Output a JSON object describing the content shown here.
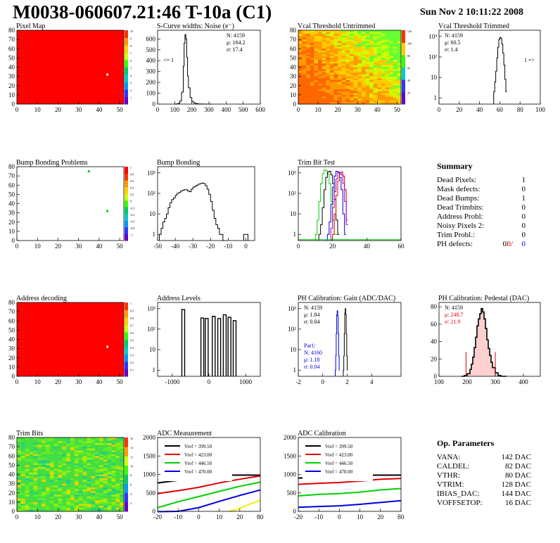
{
  "header": {
    "title": "M0038-060607.21:46 T-10a (C1)",
    "date": "Sun Nov  2 10:11:22 2008"
  },
  "colors": {
    "map_red": "#ff0000",
    "hist": "#000000",
    "red": "#e00000",
    "blue": "#0000e0",
    "green": "#00d000",
    "yellow": "#f0f000"
  },
  "chart_data": [
    {
      "id": "pixel-map",
      "type": "heatmap",
      "title": "Pixel Map",
      "xlim": [
        0,
        52
      ],
      "ylim": [
        0,
        80
      ],
      "xticks": [
        "0",
        "10",
        "20",
        "30",
        "40",
        "50"
      ],
      "yticks": [
        "0",
        "10",
        "20",
        "30",
        "40",
        "50",
        "60",
        "70",
        "80"
      ],
      "zscale": [
        "1",
        "2",
        "3",
        "4",
        "5",
        "6",
        "7",
        "8",
        "9",
        "10"
      ],
      "fill": "uniform",
      "dead_pixels": [
        [
          44,
          32
        ]
      ]
    },
    {
      "id": "scurve",
      "type": "line",
      "title": "S-Curve widths: Noise (e⁻)",
      "xlim": [
        0,
        600
      ],
      "ylim": [
        0,
        680
      ],
      "xticks": [
        "0",
        "100",
        "200",
        "300",
        "400",
        "500",
        "600"
      ],
      "yticks": [
        "0",
        "100",
        "200",
        "300",
        "400",
        "500",
        "600"
      ],
      "stats": [
        "N: 4159",
        "μ: 164.2",
        "σ: 17.4"
      ],
      "underflow_label": "<= 1",
      "x": [
        100,
        110,
        120,
        130,
        140,
        150,
        155,
        160,
        165,
        170,
        175,
        180,
        190,
        200,
        210,
        220,
        230,
        240,
        250,
        260,
        280,
        300
      ],
      "values": [
        0,
        2,
        8,
        30,
        110,
        350,
        560,
        640,
        600,
        430,
        260,
        150,
        60,
        25,
        12,
        6,
        3,
        2,
        1,
        1,
        0,
        0
      ]
    },
    {
      "id": "vcal-untrimmed",
      "type": "heatmap",
      "title": "Vcal Threshold Untrimmed",
      "xlim": [
        0,
        52
      ],
      "ylim": [
        0,
        80
      ],
      "xticks": [
        "0",
        "10",
        "20",
        "30",
        "40",
        "50"
      ],
      "yticks": [
        "0",
        "10",
        "20",
        "30",
        "40",
        "50",
        "60",
        "70",
        "80"
      ],
      "zscale": [
        "20",
        "40",
        "60",
        "80",
        "100",
        "120"
      ],
      "fill": "gradient-orange-green"
    },
    {
      "id": "vcal-trimmed",
      "type": "line",
      "title": "Vcal Threshold Trimmed",
      "log_y": true,
      "xlim": [
        0,
        100
      ],
      "ylim": [
        0.5,
        2000
      ],
      "xticks": [
        "0",
        "20",
        "40",
        "60",
        "80",
        "100"
      ],
      "yticks": [
        "1",
        "10",
        "10²",
        "10³"
      ],
      "stats": [
        "N: 4159",
        "μ: 60.5",
        "σ:  1.4"
      ],
      "overflow_label": "1 =>",
      "x": [
        54,
        55,
        56,
        57,
        58,
        59,
        60,
        61,
        62,
        63,
        64,
        65,
        66
      ],
      "values": [
        2,
        6,
        20,
        90,
        300,
        700,
        900,
        800,
        420,
        150,
        40,
        8,
        2
      ]
    },
    {
      "id": "bump-problems",
      "type": "heatmap",
      "title": "Bump Bonding Problems",
      "xlim": [
        0,
        52
      ],
      "ylim": [
        0,
        80
      ],
      "xticks": [
        "0",
        "10",
        "20",
        "30",
        "40",
        "50"
      ],
      "yticks": [
        "0",
        "10",
        "20",
        "30",
        "40",
        "50",
        "60",
        "70",
        "80"
      ],
      "zscale": [
        "-1",
        "-0.8",
        "-0.6",
        "-0.4",
        "-0.2",
        "0",
        "0.2",
        "0.4",
        "0.6",
        "0.8",
        "1"
      ],
      "fill": "white",
      "dead_pixels": [
        [
          35,
          75
        ],
        [
          44,
          32
        ]
      ]
    },
    {
      "id": "bump-bonding",
      "type": "line",
      "title": "Bump Bonding",
      "log_y": true,
      "xlim": [
        -50,
        5
      ],
      "ylim": [
        0.5,
        2000
      ],
      "xticks": [
        "-50",
        "-40",
        "-30",
        "-20",
        "-10",
        "0"
      ],
      "yticks": [
        "1",
        "10",
        "10²",
        "10³"
      ],
      "x": [
        -49,
        -48,
        -47,
        -46,
        -45,
        -44,
        -43,
        -42,
        -41,
        -40,
        -39,
        -38,
        -37,
        -36,
        -35,
        -34,
        -33,
        -32,
        -31,
        -30,
        -29,
        -28,
        -27,
        -26,
        -25,
        -24,
        -23,
        -22,
        -21,
        -20,
        -19,
        -18,
        -17,
        -16,
        -15,
        -14,
        -13
      ],
      "values": [
        1,
        2,
        4,
        6,
        10,
        20,
        35,
        50,
        60,
        80,
        100,
        110,
        130,
        140,
        150,
        150,
        130,
        120,
        160,
        200,
        220,
        250,
        280,
        300,
        320,
        300,
        240,
        160,
        90,
        40,
        15,
        6,
        3,
        2,
        1,
        1,
        0.5
      ],
      "extra": {
        "x": 0,
        "value": 1
      }
    },
    {
      "id": "trim-bit-test",
      "type": "line",
      "title": "Trim Bit Test",
      "log_y": true,
      "xlim": [
        0,
        60
      ],
      "ylim": [
        0.5,
        2000
      ],
      "xticks": [
        "0",
        "20",
        "40",
        "60"
      ],
      "yticks": [
        "1",
        "10",
        "10²",
        "10³"
      ],
      "series": [
        {
          "color": "#00d000",
          "x": [
            10,
            11,
            12,
            13,
            14,
            15,
            16,
            17,
            18,
            19,
            20,
            21,
            22
          ],
          "values": [
            1,
            5,
            40,
            300,
            900,
            1400,
            1300,
            900,
            300,
            40,
            5,
            1,
            1
          ]
        },
        {
          "color": "#000000",
          "x": [
            12,
            13,
            14,
            15,
            16,
            17,
            18,
            19,
            20,
            21,
            22,
            23
          ],
          "values": [
            1,
            3,
            20,
            150,
            600,
            1100,
            1200,
            800,
            300,
            50,
            5,
            1
          ]
        },
        {
          "color": "#0000e0",
          "x": [
            17,
            18,
            19,
            20,
            21,
            22,
            23,
            24,
            25,
            26,
            27
          ],
          "values": [
            1,
            4,
            30,
            200,
            700,
            1200,
            1100,
            600,
            150,
            10,
            1
          ]
        },
        {
          "color": "#e00000",
          "x": [
            20,
            21,
            22,
            23,
            24,
            25,
            26,
            27,
            28
          ],
          "values": [
            1,
            10,
            80,
            400,
            900,
            1100,
            700,
            150,
            5
          ]
        },
        {
          "color": "#a000c0",
          "x": [
            19,
            20,
            21,
            22,
            23,
            24,
            25,
            26,
            27,
            28
          ],
          "values": [
            2,
            20,
            120,
            500,
            1000,
            1100,
            800,
            300,
            40,
            3
          ]
        }
      ]
    },
    {
      "id": "address-decoding",
      "type": "heatmap",
      "title": "Address decoding",
      "xlim": [
        0,
        52
      ],
      "ylim": [
        0,
        80
      ],
      "xticks": [
        "0",
        "10",
        "20",
        "30",
        "40",
        "50"
      ],
      "yticks": [
        "0",
        "10",
        "20",
        "30",
        "40",
        "50",
        "60",
        "70",
        "80"
      ],
      "zscale": [
        "0.1",
        "0.2",
        "0.3",
        "0.4",
        "0.5",
        "0.6",
        "0.7",
        "0.8",
        "0.9",
        "1"
      ],
      "fill": "uniform",
      "dead_pixels": [
        [
          44,
          32
        ]
      ]
    },
    {
      "id": "address-levels",
      "type": "line",
      "title": "Address Levels",
      "log_y": true,
      "xlim": [
        -1400,
        1400
      ],
      "ylim": [
        0.5,
        2000
      ],
      "xticks": [
        "-1000",
        "0",
        "1000"
      ],
      "yticks": [
        "1",
        "10",
        "10²",
        "10³"
      ],
      "peaks": [
        {
          "x": -700,
          "v": 900
        },
        {
          "x": -180,
          "v": 350
        },
        {
          "x": -60,
          "v": 330
        },
        {
          "x": 130,
          "v": 420
        },
        {
          "x": 280,
          "v": 330
        },
        {
          "x": 430,
          "v": 500
        },
        {
          "x": 560,
          "v": 380
        },
        {
          "x": 700,
          "v": 260
        }
      ]
    },
    {
      "id": "ph-gain",
      "type": "line",
      "title": "PH Calibration: Gain (ADC/DAC)",
      "log_y": true,
      "xlim": [
        -2,
        6.4
      ],
      "ylim": [
        0.5,
        2000
      ],
      "xticks": [
        "-2",
        "0",
        "2",
        "4"
      ],
      "yticks": [
        "1",
        "10",
        "10²",
        "10³"
      ],
      "stats": [
        "N: 4159",
        "μ: 1.84",
        "σ: 0.04"
      ],
      "stats2": [
        "Par1:",
        "N: 4160",
        "μ: 1.18",
        "σ: 0.04"
      ],
      "series": [
        {
          "color": "#000000",
          "x": [
            1.68,
            1.72,
            1.76,
            1.8,
            1.84,
            1.88,
            1.92,
            1.96,
            2.0
          ],
          "values": [
            1,
            5,
            60,
            600,
            1000,
            500,
            60,
            5,
            1
          ]
        },
        {
          "color": "#0000e0",
          "x": [
            1.02,
            1.06,
            1.1,
            1.14,
            1.18,
            1.22,
            1.26,
            1.3,
            1.34
          ],
          "values": [
            1,
            5,
            60,
            500,
            800,
            450,
            60,
            5,
            1
          ]
        }
      ]
    },
    {
      "id": "ph-pedestal",
      "type": "line",
      "title": "PH Calibration: Pedestal (DAC)",
      "xlim": [
        100,
        460
      ],
      "ylim": [
        0,
        85
      ],
      "xticks": [
        "100",
        "200",
        "300",
        "400"
      ],
      "yticks": [
        "0",
        "20",
        "40",
        "60",
        "80"
      ],
      "stats": [
        "N: 4159",
        "μ: 248.7",
        "σ: 21.9"
      ],
      "x": [
        180,
        190,
        200,
        210,
        215,
        220,
        225,
        230,
        235,
        240,
        245,
        250,
        255,
        260,
        265,
        270,
        275,
        280,
        285,
        290,
        300,
        310,
        320,
        330
      ],
      "values": [
        0,
        1,
        3,
        8,
        14,
        22,
        33,
        45,
        58,
        66,
        72,
        78,
        74,
        66,
        55,
        42,
        32,
        24,
        16,
        10,
        4,
        1,
        0,
        0
      ],
      "markers": [
        196,
        300
      ]
    },
    {
      "id": "trim-bits",
      "type": "heatmap",
      "title": "Trim Bits",
      "xlim": [
        0,
        52
      ],
      "ylim": [
        0,
        80
      ],
      "xticks": [
        "0",
        "10",
        "20",
        "30",
        "40",
        "50"
      ],
      "yticks": [
        "0",
        "10",
        "20",
        "30",
        "40",
        "50",
        "60",
        "70",
        "80"
      ],
      "zscale": [
        "2",
        "4",
        "6",
        "8",
        "10",
        "12",
        "14",
        "16"
      ],
      "fill": "noise-green"
    },
    {
      "id": "adc-measurement",
      "type": "line",
      "title": "ADC Measurement",
      "xlim": [
        -20,
        30
      ],
      "ylim": [
        0,
        2000
      ],
      "xticks": [
        "-20",
        "-10",
        "0",
        "10",
        "20",
        "30"
      ],
      "yticks": [
        "0",
        "500",
        "1000",
        "1500",
        "2000"
      ],
      "xaxis_unit": "τ",
      "series": [
        {
          "name": "Vref = 399.50",
          "color": "#000000",
          "x": [
            -20,
            -10,
            0,
            5,
            17,
            20,
            30
          ],
          "values": [
            770,
            840,
            950,
            990,
            980,
            980,
            980
          ]
        },
        {
          "name": "Vref = 423.00",
          "color": "#e00000",
          "x": [
            -20,
            -10,
            0,
            10,
            20,
            30
          ],
          "values": [
            480,
            560,
            650,
            770,
            870,
            960
          ]
        },
        {
          "name": "Vref = 446.50",
          "color": "#00d000",
          "x": [
            -20,
            -10,
            0,
            10,
            20,
            30
          ],
          "values": [
            100,
            260,
            400,
            540,
            680,
            790
          ]
        },
        {
          "name": "Vref = 470.00",
          "color": "#0000e0",
          "x": [
            -20,
            -10,
            0,
            10,
            20,
            30
          ],
          "values": [
            -10,
            0,
            100,
            270,
            430,
            580
          ]
        },
        {
          "name": "",
          "color": "#f0f000",
          "x": [
            15,
            20,
            25,
            30
          ],
          "values": [
            0,
            80,
            200,
            300
          ]
        }
      ]
    },
    {
      "id": "adc-calibration",
      "type": "line",
      "title": "ADC Calibration",
      "xlim": [
        -20,
        30
      ],
      "ylim": [
        0,
        2000
      ],
      "xticks": [
        "-20",
        "-10",
        "0",
        "10",
        "20",
        "30"
      ],
      "yticks": [
        "0",
        "500",
        "1000",
        "1500",
        "2000"
      ],
      "xaxis_unit": "τ",
      "series": [
        {
          "name": "Vref = 399.50",
          "color": "#000000",
          "x": [
            -20,
            -10,
            0,
            5,
            17,
            20,
            30
          ],
          "values": [
            900,
            920,
            960,
            980,
            980,
            980,
            980
          ]
        },
        {
          "name": "Vref = 423.00",
          "color": "#e00000",
          "x": [
            -20,
            -10,
            0,
            10,
            20,
            30
          ],
          "values": [
            730,
            760,
            780,
            820,
            870,
            890
          ]
        },
        {
          "name": "Vref = 446.50",
          "color": "#00d000",
          "x": [
            -20,
            -10,
            0,
            10,
            20,
            30
          ],
          "values": [
            420,
            460,
            480,
            520,
            580,
            620
          ]
        },
        {
          "name": "Vref = 470.00",
          "color": "#0000e0",
          "x": [
            -20,
            -10,
            0,
            10,
            20,
            30
          ],
          "values": [
            110,
            130,
            150,
            190,
            240,
            290
          ]
        }
      ]
    }
  ],
  "summary": {
    "title": "Summary",
    "rows": [
      {
        "label": "Dead Pixels:",
        "value": "1"
      },
      {
        "label": "Mask defects:",
        "value": "0"
      },
      {
        "label": "Dead Bumps:",
        "value": "1"
      },
      {
        "label": "Dead Trimbits:",
        "value": "0"
      },
      {
        "label": "Address Probl:",
        "value": "0"
      },
      {
        "label": "Noisy Pixels 2:",
        "value": "0"
      },
      {
        "label": "Trim Probl.:",
        "value": "0"
      }
    ],
    "ph_label": "PH defects:",
    "ph_values": [
      "0/",
      "0/",
      "0"
    ]
  },
  "op_params": {
    "title": "Op. Parameters",
    "rows": [
      {
        "label": "VANA:",
        "value": "142 DAC"
      },
      {
        "label": "CALDEL:",
        "value": "82 DAC"
      },
      {
        "label": "VTHR:",
        "value": "80 DAC"
      },
      {
        "label": "VTRIM:",
        "value": "128 DAC"
      },
      {
        "label": "IBIAS_DAC:",
        "value": "144 DAC"
      },
      {
        "label": "VOFFSETOP:",
        "value": "16 DAC"
      }
    ]
  }
}
